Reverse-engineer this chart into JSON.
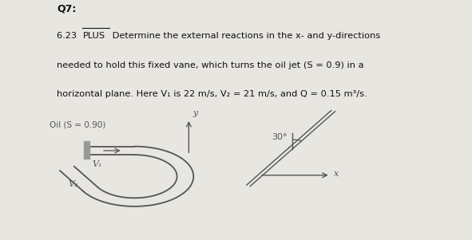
{
  "title": "Q7:",
  "line1": "6.23 PLUS Determine the external reactions in the x- and y-directions",
  "line2": "needed to hold this fixed vane, which turns the oil jet (S = 0.9) in a",
  "line3": "horizontal plane. Here V₁ is 22 m/s, V₂ = 21 m/s, and Q = 0.15 m³/s.",
  "label_oil": "Oil (S = 0.90)",
  "label_V1": "V₁",
  "label_V2": "V₂",
  "label_x": "x",
  "label_y": "y",
  "angle_label": "30°",
  "bg_color": "#e8e6e0",
  "line_color": "#555555",
  "text_color": "#111111",
  "cap_color": "#999999",
  "fig_w": 5.91,
  "fig_h": 3.01
}
